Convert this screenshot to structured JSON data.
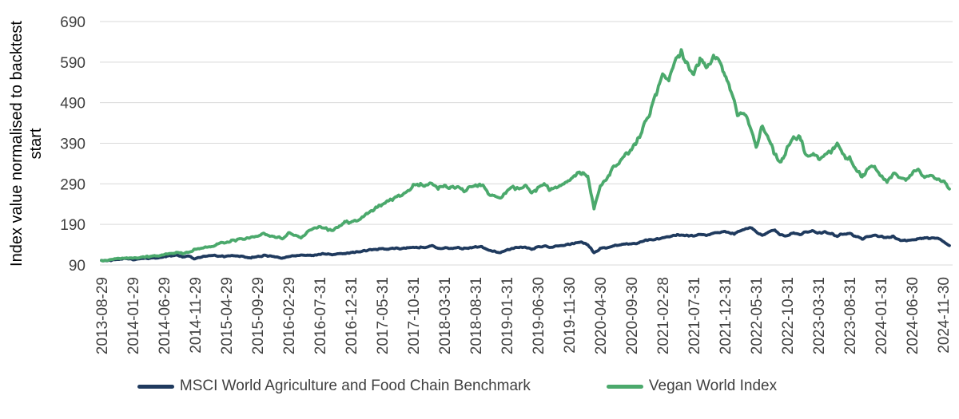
{
  "page": {
    "background": "#ffffff"
  },
  "chart_data": {
    "type": "line",
    "title": "",
    "ylabel": "Index value normalised to backtest start",
    "ylabel_line1": "Index value normalised to backtest",
    "ylabel_line2": "start",
    "xlabel": "",
    "ylim": [
      90,
      690
    ],
    "yticks": [
      90,
      190,
      290,
      390,
      490,
      590,
      690
    ],
    "grid": "horizontal",
    "gridline_color": "#d9d9d9",
    "axis_text_color": "#404040",
    "legend_position": "bottom",
    "months_per_tick": 5,
    "x_tick_labels": [
      "2013-08-29",
      "2014-01-29",
      "2014-06-29",
      "2014-11-29",
      "2015-04-29",
      "2015-09-29",
      "2016-02-29",
      "2016-07-31",
      "2016-12-31",
      "2017-05-31",
      "2017-10-31",
      "2018-03-31",
      "2018-08-31",
      "2019-01-31",
      "2019-06-30",
      "2019-11-30",
      "2020-04-30",
      "2020-09-30",
      "2021-02-28",
      "2021-07-31",
      "2021-12-31",
      "2022-05-31",
      "2022-10-31",
      "2023-03-31",
      "2023-08-31",
      "2024-01-31",
      "2024-06-30",
      "2024-11-30"
    ],
    "series": [
      {
        "name": "MSCI World Agriculture and Food Chain Benchmark",
        "color": "#1f3a5e",
        "monthly_values": [
          100,
          101,
          103,
          104,
          106,
          103,
          105,
          106,
          107,
          108,
          110,
          113,
          114,
          110,
          112,
          105,
          110,
          112,
          114,
          112,
          111,
          113,
          112,
          110,
          108,
          110,
          113,
          112,
          110,
          107,
          111,
          113,
          115,
          113,
          114,
          116,
          118,
          115,
          117,
          119,
          120,
          122,
          125,
          127,
          128,
          130,
          129,
          131,
          130,
          132,
          132,
          133,
          134,
          137,
          130,
          132,
          131,
          133,
          130,
          132,
          134,
          135,
          128,
          124,
          120,
          127,
          131,
          133,
          134,
          129,
          134,
          137,
          134,
          137,
          138,
          141,
          144,
          146,
          140,
          120,
          130,
          133,
          137,
          139,
          141,
          142,
          144,
          150,
          152,
          153,
          157,
          160,
          163,
          165,
          163,
          161,
          166,
          164,
          168,
          170,
          172,
          166,
          170,
          178,
          183,
          172,
          163,
          172,
          175,
          164,
          161,
          170,
          166,
          172,
          174,
          169,
          171,
          167,
          162,
          166,
          168,
          160,
          154,
          160,
          163,
          160,
          157,
          160,
          152,
          150,
          152,
          155,
          158,
          155,
          157,
          148,
          137
        ]
      },
      {
        "name": "Vegan World Index",
        "color": "#4ba96c",
        "monthly_values": [
          100,
          102,
          104,
          106,
          108,
          106,
          108,
          110,
          111,
          113,
          116,
          119,
          121,
          118,
          121,
          128,
          131,
          134,
          138,
          143,
          146,
          150,
          152,
          155,
          158,
          160,
          166,
          163,
          160,
          155,
          168,
          162,
          158,
          170,
          178,
          184,
          180,
          173,
          185,
          197,
          194,
          200,
          210,
          220,
          230,
          240,
          248,
          254,
          262,
          272,
          285,
          288,
          284,
          291,
          278,
          284,
          280,
          285,
          272,
          280,
          285,
          288,
          268,
          258,
          256,
          270,
          281,
          276,
          284,
          266,
          278,
          292,
          274,
          282,
          288,
          300,
          312,
          318,
          310,
          228,
          285,
          300,
          330,
          345,
          360,
          372,
          398,
          432,
          465,
          515,
          560,
          545,
          588,
          612,
          585,
          555,
          600,
          570,
          602,
          598,
          560,
          520,
          458,
          465,
          432,
          380,
          432,
          405,
          362,
          342,
          378,
          400,
          408,
          358,
          366,
          352,
          362,
          370,
          388,
          360,
          352,
          328,
          306,
          325,
          335,
          310,
          292,
          315,
          308,
          298,
          318,
          325,
          305,
          315,
          300,
          295,
          282
        ]
      }
    ]
  }
}
